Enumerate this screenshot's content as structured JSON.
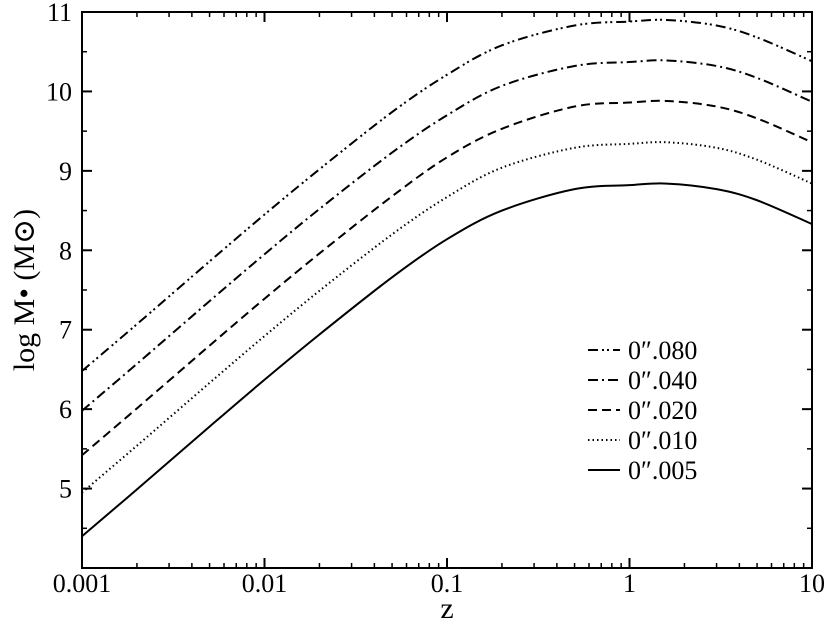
{
  "chart_data": {
    "type": "line",
    "xlabel": "z",
    "ylabel": "log M• (M⊙)",
    "xscale": "log",
    "xlim": [
      0.001,
      10
    ],
    "ylim": [
      4,
      11
    ],
    "xticks": [
      {
        "value": 0.001,
        "label": "0.001"
      },
      {
        "value": 0.01,
        "label": "0.01"
      },
      {
        "value": 0.1,
        "label": "0.1"
      },
      {
        "value": 1,
        "label": "1"
      },
      {
        "value": 10,
        "label": "10"
      }
    ],
    "yticks": [
      {
        "value": 5,
        "label": "5"
      },
      {
        "value": 6,
        "label": "6"
      },
      {
        "value": 7,
        "label": "7"
      },
      {
        "value": 8,
        "label": "8"
      },
      {
        "value": 9,
        "label": "9"
      },
      {
        "value": 10,
        "label": "10"
      },
      {
        "value": 11,
        "label": "11"
      }
    ],
    "grid": false,
    "legend_position": "right",
    "series": [
      {
        "name": "0″.080",
        "style": "dash-dot-dot",
        "x": [
          0.001,
          0.002,
          0.005,
          0.01,
          0.02,
          0.05,
          0.1,
          0.2,
          0.5,
          1,
          1.6,
          3,
          5,
          10
        ],
        "y": [
          6.48,
          7.07,
          7.86,
          8.45,
          9.02,
          9.74,
          10.21,
          10.58,
          10.83,
          10.88,
          10.9,
          10.83,
          10.68,
          10.38
        ]
      },
      {
        "name": "0″.040",
        "style": "dash-dot",
        "x": [
          0.001,
          0.002,
          0.005,
          0.01,
          0.02,
          0.05,
          0.1,
          0.2,
          0.5,
          1,
          1.6,
          3,
          5,
          10
        ],
        "y": [
          5.98,
          6.57,
          7.36,
          7.95,
          8.52,
          9.23,
          9.7,
          10.07,
          10.32,
          10.37,
          10.39,
          10.32,
          10.17,
          9.87
        ]
      },
      {
        "name": "0″.020",
        "style": "dashed",
        "x": [
          0.001,
          0.002,
          0.005,
          0.01,
          0.02,
          0.05,
          0.1,
          0.2,
          0.5,
          1,
          1.6,
          3,
          5,
          10
        ],
        "y": [
          5.42,
          6.01,
          6.8,
          7.39,
          7.96,
          8.68,
          9.17,
          9.53,
          9.81,
          9.86,
          9.88,
          9.81,
          9.66,
          9.36
        ]
      },
      {
        "name": "0″.010",
        "style": "dotted",
        "x": [
          0.001,
          0.002,
          0.005,
          0.01,
          0.02,
          0.05,
          0.1,
          0.2,
          0.5,
          1,
          1.6,
          3,
          5,
          10
        ],
        "y": [
          4.95,
          5.54,
          6.33,
          6.92,
          7.49,
          8.2,
          8.67,
          9.04,
          9.29,
          9.34,
          9.36,
          9.29,
          9.14,
          8.84
        ]
      },
      {
        "name": "0″.005",
        "style": "solid",
        "x": [
          0.001,
          0.002,
          0.005,
          0.01,
          0.02,
          0.05,
          0.1,
          0.2,
          0.5,
          1,
          1.6,
          3,
          5,
          10
        ],
        "y": [
          4.4,
          4.99,
          5.78,
          6.37,
          6.94,
          7.66,
          8.14,
          8.5,
          8.77,
          8.82,
          8.84,
          8.77,
          8.63,
          8.33
        ]
      }
    ]
  }
}
